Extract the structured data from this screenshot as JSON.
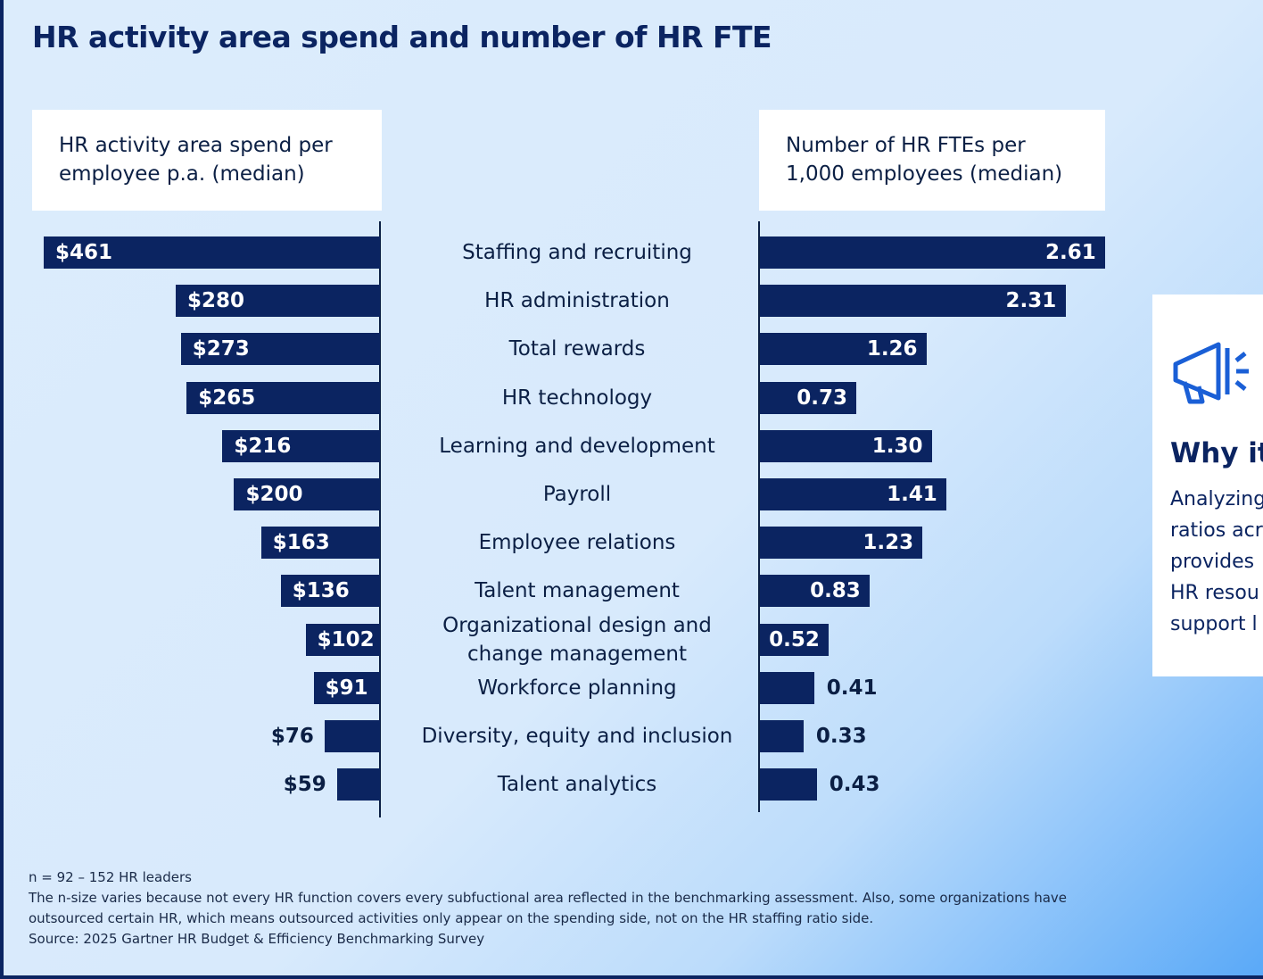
{
  "chart_data": {
    "type": "butterfly-bar",
    "title": "HR activity area spend and number of HR FTE",
    "categories": [
      "Staffing and recruiting",
      "HR administration",
      "Total rewards",
      "HR technology",
      "Learning and development",
      "Payroll",
      "Employee relations",
      "Talent management",
      "Organizational design and change management",
      "Workforce planning",
      "Diversity, equity and inclusion",
      "Talent analytics"
    ],
    "series": [
      {
        "name": "HR activity area spend per employee p.a. (median)",
        "color": "#0b2461",
        "side": "left",
        "values": [
          461,
          280,
          273,
          265,
          216,
          200,
          163,
          136,
          102,
          91,
          76,
          59
        ],
        "value_labels": [
          "$461",
          "$280",
          "$273",
          "$265",
          "$216",
          "$200",
          "$163",
          "$136",
          "$102",
          "$91",
          "$76",
          "$59"
        ]
      },
      {
        "name": "Number of HR FTEs per 1,000 employees (median)",
        "color": "#0b2461",
        "side": "right",
        "values": [
          2.61,
          2.31,
          1.26,
          0.73,
          1.3,
          1.41,
          1.23,
          0.83,
          0.52,
          0.41,
          0.33,
          0.43
        ],
        "value_labels": [
          "2.61",
          "2.31",
          "1.26",
          "0.73",
          "1.30",
          "1.41",
          "1.23",
          "0.83",
          "0.52",
          "0.41",
          "0.33",
          "0.43"
        ]
      }
    ]
  },
  "notes": [
    "n = 92 – 152 HR leaders",
    "The n-size varies because not every HR function covers every subfuctional area reflected in the benchmarking assessment. Also, some organizations have outsourced certain HR, which means outsourced activities only appear on the spending side, not on the HR staffing ratio side.",
    "Source: 2025 Gartner HR Budget & Efficiency Benchmarking Survey"
  ],
  "card": {
    "title": "Why it",
    "lines": [
      "Analyzing",
      "ratios acr",
      "provides",
      "HR resou",
      "support l"
    ]
  }
}
